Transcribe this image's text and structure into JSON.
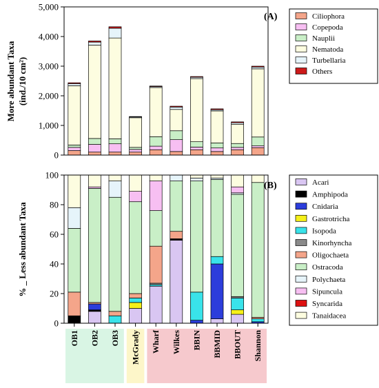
{
  "chart_data": [
    {
      "type": "bar",
      "stacked": true,
      "panel_label": "(A)",
      "ylabel_line1": "More abundant Taxa",
      "ylabel_line2": "(ind./10 cm²)",
      "ylim": [
        0,
        5000
      ],
      "yticks": [
        "0",
        "1,000",
        "2,000",
        "3,000",
        "4,000",
        "5,000"
      ],
      "ytick_values": [
        0,
        1000,
        2000,
        3000,
        4000,
        5000
      ],
      "legend_position": "top-right",
      "categories": [
        "OB1",
        "OB2",
        "OB3",
        "McGrady",
        "Wharf",
        "Wilkes",
        "BBIN",
        "BBMID",
        "BBOUT",
        "Shannon"
      ],
      "series": [
        {
          "name": "Ciliophora",
          "color": "#f4a58a",
          "values": [
            150,
            100,
            100,
            100,
            180,
            120,
            180,
            120,
            180,
            250
          ]
        },
        {
          "name": "Copepoda",
          "color": "#f7bff2",
          "values": [
            110,
            260,
            280,
            90,
            120,
            400,
            90,
            120,
            80,
            60
          ]
        },
        {
          "name": "Nauplii",
          "color": "#c9efc7",
          "values": [
            80,
            200,
            170,
            70,
            320,
            300,
            180,
            170,
            130,
            300
          ]
        },
        {
          "name": "Nematoda",
          "color": "#fdfde0",
          "values": [
            2000,
            3150,
            3400,
            1000,
            1660,
            720,
            2130,
            1080,
            650,
            2300
          ]
        },
        {
          "name": "Turbellaria",
          "color": "#e6f4fa",
          "values": [
            70,
            100,
            330,
            25,
            30,
            80,
            45,
            40,
            50,
            60
          ]
        },
        {
          "name": "Others",
          "color": "#cc1a1a",
          "values": [
            30,
            40,
            50,
            15,
            20,
            30,
            25,
            30,
            30,
            30
          ]
        }
      ]
    },
    {
      "type": "bar",
      "stacked": true,
      "panel_label": "(B)",
      "ylabel": "% _ Less abundant Taxa",
      "ylim": [
        0,
        100
      ],
      "yticks": [
        "0",
        "20",
        "40",
        "60",
        "80",
        "100"
      ],
      "ytick_values": [
        0,
        20,
        40,
        60,
        80,
        100
      ],
      "legend_position": "right",
      "categories": [
        "OB1",
        "OB2",
        "OB3",
        "McGrady",
        "Wharf",
        "Wilkes",
        "BBIN",
        "BBMID",
        "BBOUT",
        "Shannon"
      ],
      "series": [
        {
          "name": "Acari",
          "color": "#d9c6f2",
          "values": [
            0,
            8,
            0,
            10,
            25,
            56,
            0,
            3,
            6,
            0
          ]
        },
        {
          "name": "Amphipoda",
          "color": "#000000",
          "values": [
            5,
            1,
            0,
            0,
            0,
            1,
            0,
            0,
            0,
            0
          ]
        },
        {
          "name": "Cnidaria",
          "color": "#2c3ddb",
          "values": [
            0,
            4,
            0,
            0,
            0,
            0,
            2,
            37,
            0,
            1
          ]
        },
        {
          "name": "Gastrotricha",
          "color": "#f5f019",
          "values": [
            0,
            0,
            0,
            4,
            0,
            0,
            0,
            0,
            3,
            0
          ]
        },
        {
          "name": "Isopoda",
          "color": "#39e3ea",
          "values": [
            0,
            0,
            5,
            3,
            1,
            0,
            19,
            5,
            8,
            2
          ]
        },
        {
          "name": "Kinorhyncha",
          "color": "#8a8a8a",
          "values": [
            0,
            0,
            0,
            0,
            1,
            0,
            0,
            0,
            1,
            0
          ]
        },
        {
          "name": "Oligochaeta",
          "color": "#f4a58a",
          "values": [
            16,
            1,
            3,
            3,
            25,
            5,
            0,
            0,
            0,
            1
          ]
        },
        {
          "name": "Ostracoda",
          "color": "#c9efc7",
          "values": [
            43,
            77,
            77,
            62,
            24,
            34,
            75,
            52,
            69,
            91
          ]
        },
        {
          "name": "Polychaeta",
          "color": "#e6f4fa",
          "values": [
            14,
            0,
            11,
            0,
            0,
            4,
            2,
            1,
            1,
            0
          ]
        },
        {
          "name": "Sipuncula",
          "color": "#f7bff2",
          "values": [
            0,
            1,
            0,
            7,
            20,
            0,
            0,
            0,
            4,
            0
          ]
        },
        {
          "name": "Syncarida",
          "color": "#dd1111",
          "values": [
            0,
            0,
            0,
            0,
            0,
            0,
            0,
            0,
            0,
            0
          ]
        },
        {
          "name": "Tanaidacea",
          "color": "#fdfde0",
          "values": [
            22,
            8,
            4,
            11,
            4,
            0,
            2,
            2,
            8,
            5
          ]
        }
      ]
    }
  ],
  "category_groups": [
    {
      "color": "#d9f5e4",
      "members": [
        "OB1",
        "OB2",
        "OB3"
      ]
    },
    {
      "color": "#fdf6c9",
      "members": [
        "McGrady"
      ]
    },
    {
      "color": "#f6c9cd",
      "members": [
        "Wharf",
        "Wilkes",
        "BBIN",
        "BBMID",
        "BBOUT",
        "Shannon"
      ]
    }
  ]
}
